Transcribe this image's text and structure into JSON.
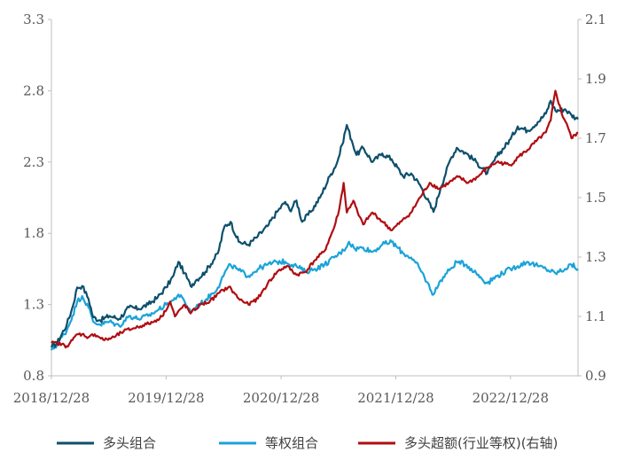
{
  "chart_data": {
    "type": "line",
    "title": "",
    "xlabel": "",
    "ylabel": "",
    "y2label": "",
    "x_tick_labels": [
      "2018/12/28",
      "2019/12/28",
      "2020/12/28",
      "2021/12/28",
      "2022/12/28"
    ],
    "ylim": [
      0.8,
      3.3
    ],
    "y_ticks": [
      "0.8",
      "1.3",
      "1.8",
      "2.3",
      "2.8",
      "3.3"
    ],
    "y2lim": [
      0.9,
      2.1
    ],
    "y2_ticks": [
      "0.9",
      "1.1",
      "1.3",
      "1.5",
      "1.7",
      "1.9",
      "2.1"
    ],
    "grid": false,
    "legend_position": "bottom",
    "series": [
      {
        "name": "多头组合",
        "axis": "left",
        "color": "#0d4f6b",
        "points": [
          [
            "2018-12-28",
            1.0
          ],
          [
            "2019-01-15",
            1.03
          ],
          [
            "2019-02-15",
            1.16
          ],
          [
            "2019-03-05",
            1.28
          ],
          [
            "2019-03-20",
            1.42
          ],
          [
            "2019-04-05",
            1.43
          ],
          [
            "2019-04-25",
            1.34
          ],
          [
            "2019-05-10",
            1.21
          ],
          [
            "2019-06-01",
            1.19
          ],
          [
            "2019-07-01",
            1.22
          ],
          [
            "2019-08-01",
            1.2
          ],
          [
            "2019-09-01",
            1.28
          ],
          [
            "2019-10-01",
            1.27
          ],
          [
            "2019-11-01",
            1.3
          ],
          [
            "2019-12-01",
            1.35
          ],
          [
            "2019-12-28",
            1.42
          ],
          [
            "2020-01-20",
            1.5
          ],
          [
            "2020-02-05",
            1.6
          ],
          [
            "2020-02-25",
            1.52
          ],
          [
            "2020-03-15",
            1.43
          ],
          [
            "2020-04-01",
            1.47
          ],
          [
            "2020-05-01",
            1.53
          ],
          [
            "2020-06-10",
            1.66
          ],
          [
            "2020-07-01",
            1.85
          ],
          [
            "2020-07-20",
            1.88
          ],
          [
            "2020-08-15",
            1.74
          ],
          [
            "2020-09-15",
            1.72
          ],
          [
            "2020-10-15",
            1.78
          ],
          [
            "2020-11-15",
            1.85
          ],
          [
            "2020-12-15",
            1.95
          ],
          [
            "2021-01-10",
            2.02
          ],
          [
            "2021-01-25",
            1.96
          ],
          [
            "2021-02-15",
            2.03
          ],
          [
            "2021-03-05",
            1.88
          ],
          [
            "2021-04-01",
            1.95
          ],
          [
            "2021-05-01",
            2.05
          ],
          [
            "2021-06-01",
            2.2
          ],
          [
            "2021-06-25",
            2.3
          ],
          [
            "2021-07-10",
            2.42
          ],
          [
            "2021-07-25",
            2.56
          ],
          [
            "2021-08-10",
            2.45
          ],
          [
            "2021-08-25",
            2.35
          ],
          [
            "2021-09-15",
            2.4
          ],
          [
            "2021-10-15",
            2.3
          ],
          [
            "2021-11-15",
            2.36
          ],
          [
            "2021-12-15",
            2.32
          ],
          [
            "2022-01-20",
            2.2
          ],
          [
            "2022-02-15",
            2.22
          ],
          [
            "2022-03-15",
            2.14
          ],
          [
            "2022-04-27",
            1.95
          ],
          [
            "2022-05-20",
            2.12
          ],
          [
            "2022-06-20",
            2.32
          ],
          [
            "2022-07-10",
            2.4
          ],
          [
            "2022-08-10",
            2.36
          ],
          [
            "2022-09-10",
            2.3
          ],
          [
            "2022-10-15",
            2.22
          ],
          [
            "2022-11-15",
            2.34
          ],
          [
            "2022-12-28",
            2.46
          ],
          [
            "2023-01-20",
            2.55
          ],
          [
            "2023-02-20",
            2.52
          ],
          [
            "2023-03-25",
            2.58
          ],
          [
            "2023-04-20",
            2.64
          ],
          [
            "2023-05-05",
            2.73
          ],
          [
            "2023-05-20",
            2.66
          ],
          [
            "2023-06-20",
            2.67
          ],
          [
            "2023-07-10",
            2.63
          ],
          [
            "2023-07-31",
            2.6
          ]
        ]
      },
      {
        "name": "等权组合",
        "axis": "left",
        "color": "#1aa3d9",
        "points": [
          [
            "2018-12-28",
            0.98
          ],
          [
            "2019-01-15",
            1.02
          ],
          [
            "2019-02-15",
            1.12
          ],
          [
            "2019-03-05",
            1.22
          ],
          [
            "2019-03-20",
            1.32
          ],
          [
            "2019-04-05",
            1.36
          ],
          [
            "2019-04-25",
            1.28
          ],
          [
            "2019-05-10",
            1.18
          ],
          [
            "2019-06-01",
            1.16
          ],
          [
            "2019-07-01",
            1.18
          ],
          [
            "2019-08-01",
            1.15
          ],
          [
            "2019-09-01",
            1.22
          ],
          [
            "2019-10-01",
            1.2
          ],
          [
            "2019-11-01",
            1.22
          ],
          [
            "2019-12-01",
            1.26
          ],
          [
            "2019-12-28",
            1.3
          ],
          [
            "2020-01-20",
            1.33
          ],
          [
            "2020-02-05",
            1.37
          ],
          [
            "2020-02-25",
            1.32
          ],
          [
            "2020-03-15",
            1.25
          ],
          [
            "2020-04-01",
            1.28
          ],
          [
            "2020-05-01",
            1.33
          ],
          [
            "2020-06-10",
            1.42
          ],
          [
            "2020-07-01",
            1.52
          ],
          [
            "2020-07-20",
            1.58
          ],
          [
            "2020-08-15",
            1.54
          ],
          [
            "2020-09-15",
            1.5
          ],
          [
            "2020-10-15",
            1.55
          ],
          [
            "2020-11-15",
            1.58
          ],
          [
            "2020-12-15",
            1.6
          ],
          [
            "2021-01-10",
            1.6
          ],
          [
            "2021-02-15",
            1.57
          ],
          [
            "2021-03-15",
            1.53
          ],
          [
            "2021-04-15",
            1.55
          ],
          [
            "2021-05-15",
            1.58
          ],
          [
            "2021-06-15",
            1.63
          ],
          [
            "2021-07-15",
            1.68
          ],
          [
            "2021-08-01",
            1.74
          ],
          [
            "2021-08-20",
            1.69
          ],
          [
            "2021-09-15",
            1.7
          ],
          [
            "2021-10-15",
            1.67
          ],
          [
            "2021-11-15",
            1.72
          ],
          [
            "2021-12-15",
            1.74
          ],
          [
            "2022-01-20",
            1.66
          ],
          [
            "2022-02-15",
            1.63
          ],
          [
            "2022-03-15",
            1.55
          ],
          [
            "2022-04-27",
            1.37
          ],
          [
            "2022-05-20",
            1.47
          ],
          [
            "2022-06-20",
            1.55
          ],
          [
            "2022-07-10",
            1.6
          ],
          [
            "2022-08-10",
            1.58
          ],
          [
            "2022-09-10",
            1.52
          ],
          [
            "2022-10-15",
            1.45
          ],
          [
            "2022-11-15",
            1.5
          ],
          [
            "2022-12-28",
            1.55
          ],
          [
            "2023-01-20",
            1.57
          ],
          [
            "2023-02-20",
            1.6
          ],
          [
            "2023-03-25",
            1.57
          ],
          [
            "2023-04-20",
            1.55
          ],
          [
            "2023-05-20",
            1.52
          ],
          [
            "2023-06-20",
            1.55
          ],
          [
            "2023-07-10",
            1.58
          ],
          [
            "2023-07-31",
            1.55
          ]
        ]
      },
      {
        "name": "多头超额(行业等权)(右轴)",
        "axis": "right",
        "color": "#b00d12",
        "points": [
          [
            "2018-12-28",
            1.01
          ],
          [
            "2019-01-15",
            1.01
          ],
          [
            "2019-02-15",
            1.0
          ],
          [
            "2019-03-05",
            1.02
          ],
          [
            "2019-03-20",
            1.04
          ],
          [
            "2019-04-05",
            1.04
          ],
          [
            "2019-04-25",
            1.03
          ],
          [
            "2019-05-15",
            1.04
          ],
          [
            "2019-06-15",
            1.02
          ],
          [
            "2019-07-15",
            1.03
          ],
          [
            "2019-08-15",
            1.05
          ],
          [
            "2019-09-15",
            1.06
          ],
          [
            "2019-10-15",
            1.07
          ],
          [
            "2019-11-15",
            1.08
          ],
          [
            "2019-12-15",
            1.1
          ],
          [
            "2020-01-10",
            1.15
          ],
          [
            "2020-01-25",
            1.1
          ],
          [
            "2020-02-25",
            1.14
          ],
          [
            "2020-03-15",
            1.11
          ],
          [
            "2020-04-15",
            1.14
          ],
          [
            "2020-05-15",
            1.15
          ],
          [
            "2020-06-15",
            1.18
          ],
          [
            "2020-07-15",
            1.2
          ],
          [
            "2020-08-15",
            1.16
          ],
          [
            "2020-09-15",
            1.14
          ],
          [
            "2020-10-15",
            1.16
          ],
          [
            "2020-11-15",
            1.21
          ],
          [
            "2020-12-15",
            1.25
          ],
          [
            "2021-01-15",
            1.27
          ],
          [
            "2021-02-15",
            1.24
          ],
          [
            "2021-03-15",
            1.25
          ],
          [
            "2021-04-15",
            1.29
          ],
          [
            "2021-05-15",
            1.32
          ],
          [
            "2021-06-15",
            1.4
          ],
          [
            "2021-07-01",
            1.46
          ],
          [
            "2021-07-15",
            1.55
          ],
          [
            "2021-07-25",
            1.45
          ],
          [
            "2021-08-15",
            1.49
          ],
          [
            "2021-09-01",
            1.44
          ],
          [
            "2021-09-15",
            1.41
          ],
          [
            "2021-10-15",
            1.45
          ],
          [
            "2021-11-15",
            1.42
          ],
          [
            "2021-12-15",
            1.39
          ],
          [
            "2022-01-15",
            1.42
          ],
          [
            "2022-02-15",
            1.45
          ],
          [
            "2022-03-15",
            1.5
          ],
          [
            "2022-04-15",
            1.55
          ],
          [
            "2022-05-15",
            1.53
          ],
          [
            "2022-06-15",
            1.55
          ],
          [
            "2022-07-15",
            1.57
          ],
          [
            "2022-08-15",
            1.55
          ],
          [
            "2022-09-15",
            1.57
          ],
          [
            "2022-10-15",
            1.6
          ],
          [
            "2022-11-15",
            1.62
          ],
          [
            "2022-12-28",
            1.61
          ],
          [
            "2023-01-25",
            1.64
          ],
          [
            "2023-02-20",
            1.66
          ],
          [
            "2023-03-20",
            1.69
          ],
          [
            "2023-04-20",
            1.72
          ],
          [
            "2023-05-05",
            1.76
          ],
          [
            "2023-05-20",
            1.86
          ],
          [
            "2023-06-10",
            1.78
          ],
          [
            "2023-06-25",
            1.75
          ],
          [
            "2023-07-10",
            1.7
          ],
          [
            "2023-07-31",
            1.72
          ]
        ]
      }
    ]
  }
}
